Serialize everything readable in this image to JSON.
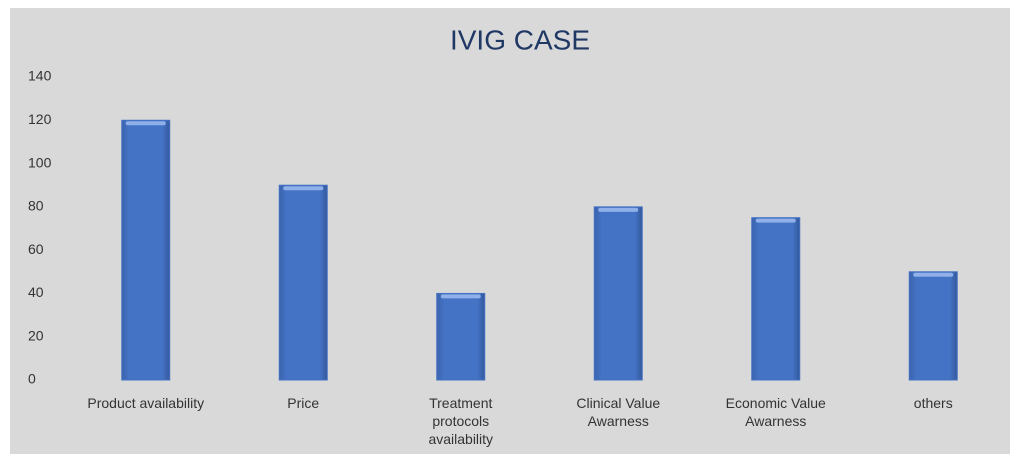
{
  "chart_data": {
    "type": "bar",
    "title": "IVIG CASE",
    "categories": [
      "Product availability",
      "Price",
      "Treatment protocols availability",
      "Clinical Value Awarness",
      "Economic Value Awarness",
      "others"
    ],
    "values": [
      120,
      90,
      40,
      80,
      75,
      50
    ],
    "color": "#4472c4",
    "ylim": [
      0,
      140
    ],
    "yticks": [
      0,
      20,
      40,
      60,
      80,
      100,
      120,
      140
    ],
    "grid": false
  }
}
